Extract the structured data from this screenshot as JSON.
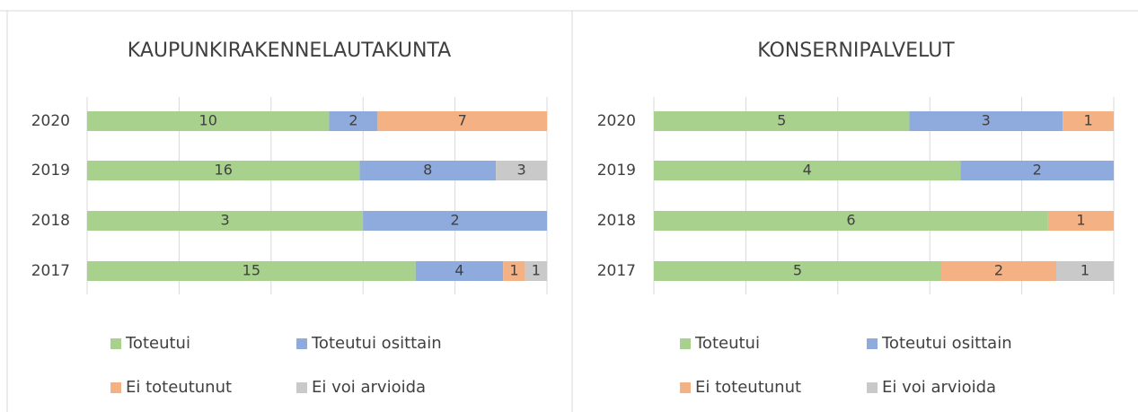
{
  "chart_data": [
    {
      "type": "bar",
      "orientation": "horizontal",
      "stacking": "percent",
      "title": "KAUPUNKIRAKENNELAUTAKUNTA",
      "categories": [
        "2020",
        "2019",
        "2018",
        "2017"
      ],
      "xlim": [
        0,
        100
      ],
      "xticks": [
        0,
        20,
        40,
        60,
        80,
        100
      ],
      "grid": true,
      "legend": "bottom",
      "series": [
        {
          "name": "Toteutui",
          "color": "#a9d18e",
          "values": [
            10,
            16,
            3,
            15
          ]
        },
        {
          "name": "Toteutui osittain",
          "color": "#8faadc",
          "values": [
            2,
            8,
            2,
            4
          ]
        },
        {
          "name": "Ei toteutunut",
          "color": "#f4b183",
          "values": [
            7,
            null,
            null,
            1
          ]
        },
        {
          "name": "Ei voi arvioida",
          "color": "#c9c9c9",
          "values": [
            null,
            3,
            null,
            1
          ]
        }
      ]
    },
    {
      "type": "bar",
      "orientation": "horizontal",
      "stacking": "percent",
      "title": "KONSERNIPALVELUT",
      "categories": [
        "2020",
        "2019",
        "2018",
        "2017"
      ],
      "xlim": [
        0,
        100
      ],
      "xticks": [
        0,
        20,
        40,
        60,
        80,
        100
      ],
      "grid": true,
      "legend": "bottom",
      "series": [
        {
          "name": "Toteutui",
          "color": "#a9d18e",
          "values": [
            5,
            4,
            6,
            5
          ]
        },
        {
          "name": "Toteutui osittain",
          "color": "#8faadc",
          "values": [
            3,
            2,
            null,
            null
          ]
        },
        {
          "name": "Ei toteutunut",
          "color": "#f4b183",
          "values": [
            1,
            null,
            1,
            2
          ]
        },
        {
          "name": "Ei voi arvioida",
          "color": "#c9c9c9",
          "values": [
            null,
            null,
            null,
            1
          ]
        }
      ]
    }
  ]
}
